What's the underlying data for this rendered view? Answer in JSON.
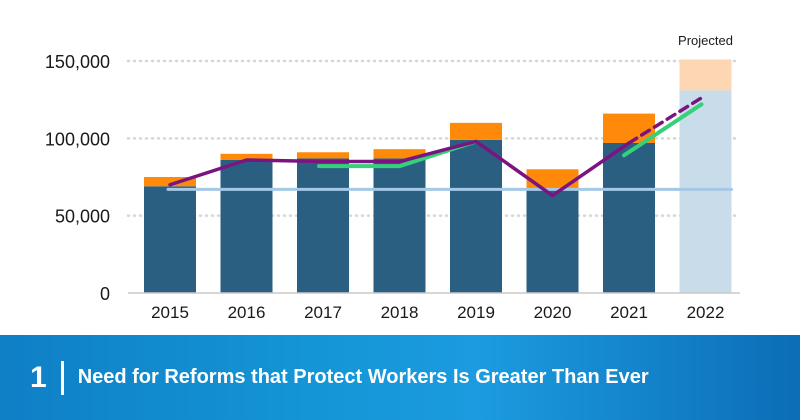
{
  "chart_data": {
    "type": "bar",
    "categories": [
      "2015",
      "2016",
      "2017",
      "2018",
      "2019",
      "2020",
      "2021",
      "2022"
    ],
    "series": [
      {
        "name": "base",
        "values": [
          69000,
          86000,
          87000,
          87000,
          99000,
          67000,
          97000,
          131000
        ]
      },
      {
        "name": "top",
        "values": [
          6000,
          4000,
          4000,
          6000,
          11000,
          13000,
          19000,
          20000
        ]
      }
    ],
    "lines": [
      {
        "name": "purple",
        "x": [
          "2015",
          "2016",
          "2017",
          "2018",
          "2019",
          "2020",
          "2021"
        ],
        "values": [
          70000,
          86000,
          85000,
          85000,
          98000,
          63000,
          97000
        ]
      },
      {
        "name": "purple-projected",
        "x": [
          "2021",
          "2022"
        ],
        "values": [
          97000,
          127000
        ]
      },
      {
        "name": "green",
        "x": [
          "2017",
          "2018",
          "2019"
        ],
        "values": [
          82000,
          82000,
          98000
        ]
      },
      {
        "name": "green-projected",
        "x": [
          "2021",
          "2022"
        ],
        "values": [
          89000,
          122000
        ]
      },
      {
        "name": "baseline",
        "x": [
          "2015",
          "2022"
        ],
        "values": [
          67000,
          67000
        ]
      }
    ],
    "projected_category": "2022",
    "projected_label": "Projected",
    "yticks": [
      0,
      50000,
      100000,
      150000
    ],
    "ytick_labels": [
      "0",
      "50,000",
      "100,000",
      "150,000"
    ],
    "ylim": [
      0,
      155000
    ],
    "grid": true,
    "title": "",
    "xlabel": "",
    "ylabel": ""
  },
  "colors": {
    "bar_base": "#2a5f82",
    "bar_top": "#ff8a0a",
    "projected_base": "#c8dde9",
    "projected_top": "#fdd7b3",
    "purple": "#7a1481",
    "green": "#35d07a",
    "baseline": "#a5c8e6",
    "grid": "#d6d6d6"
  },
  "banner": {
    "number": "1",
    "title": "Need for Reforms that Protect Workers Is Greater Than Ever"
  }
}
